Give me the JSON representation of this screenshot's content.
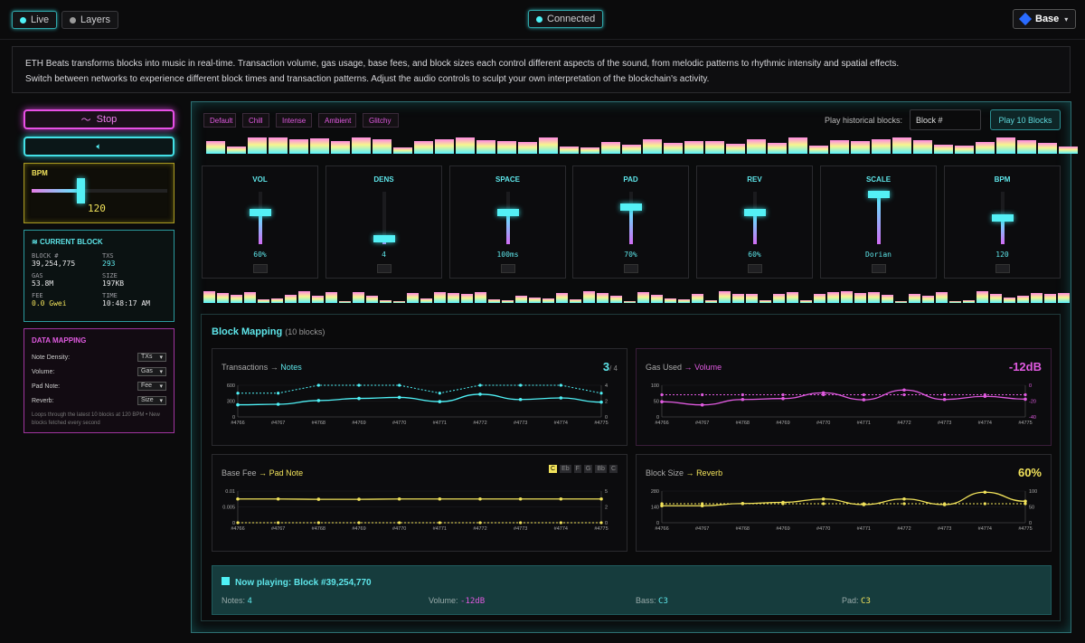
{
  "top": {
    "live": "Live",
    "layers": "Layers",
    "connected": "Connected",
    "network": "Base"
  },
  "info": {
    "line1": "ETH Beats transforms blocks into music in real-time. Transaction volume, gas usage, base fees, and block sizes each control different aspects of the sound, from melodic patterns to rhythmic intensity and spatial effects.",
    "line2": "Switch between networks to experience different block times and transaction patterns. Adjust the audio controls to sculpt your own interpretation of the blockchain's activity."
  },
  "left": {
    "stop": "Stop",
    "bpm_label": "BPM",
    "bpm_value": "120",
    "bpm_level": 0.5,
    "current_block": {
      "title": "CURRENT BLOCK",
      "block_lbl": "BLOCK #",
      "block": "39,254,775",
      "txs_lbl": "TXS",
      "txs": "293",
      "gas_lbl": "GAS",
      "gas": "53.8M",
      "size_lbl": "SIZE",
      "size": "197KB",
      "fee_lbl": "FEE",
      "fee": "0.0 Gwei",
      "time_lbl": "TIME",
      "time": "10:48:17 AM"
    },
    "mapping": {
      "title": "DATA MAPPING",
      "rows": [
        {
          "label": "Note Density:",
          "value": "TXs"
        },
        {
          "label": "Volume:",
          "value": "Gas"
        },
        {
          "label": "Pad Note:",
          "value": "Fee"
        },
        {
          "label": "Reverb:",
          "value": "Size"
        }
      ],
      "note": "Loops through the latest 10 blocks at 120 BPM • New blocks fetched every second"
    }
  },
  "presets": [
    "Default",
    "Chill",
    "Intense",
    "Ambient",
    "Glitchy"
  ],
  "history": {
    "label": "Play historical blocks:",
    "placeholder": "Block #",
    "button": "Play 10 Blocks"
  },
  "faders": [
    {
      "name": "VOL",
      "value": "60%",
      "level": 0.6
    },
    {
      "name": "DENS",
      "value": "4",
      "level": 0.1
    },
    {
      "name": "SPACE",
      "value": "100ms",
      "level": 0.6
    },
    {
      "name": "PAD",
      "value": "70%",
      "level": 0.7
    },
    {
      "name": "REV",
      "value": "60%",
      "level": 0.6
    },
    {
      "name": "SCALE",
      "value": "Dorian",
      "level": 0.95
    },
    {
      "name": "BPM",
      "value": "120",
      "level": 0.5
    }
  ],
  "block_mapping": {
    "title": "Block Mapping",
    "count": "(10 blocks)",
    "x_labels": [
      "#4766",
      "#4767",
      "#4768",
      "#4769",
      "#4770",
      "#4771",
      "#4772",
      "#4773",
      "#4774",
      "#4775"
    ],
    "tx": {
      "title": "Transactions",
      "arrow": "→",
      "target": "Notes",
      "big": "3",
      "sub": "/ 4",
      "yl": [
        "600",
        "300",
        "0"
      ],
      "yr": [
        "4",
        "2",
        "0"
      ]
    },
    "gas": {
      "title": "Gas Used",
      "arrow": "→",
      "target": "Volume",
      "big": "-12dB",
      "yl": [
        "100",
        "50",
        "0"
      ],
      "yr": [
        "0",
        "-20",
        "-40"
      ]
    },
    "fee": {
      "title": "Base Fee",
      "arrow": "→",
      "target": "Pad Note",
      "notes": [
        "C",
        "Eb",
        "F",
        "G",
        "Bb",
        "C"
      ],
      "yl": [
        "0.01",
        "0.005",
        "0"
      ],
      "yr": [
        "5",
        "2",
        "0"
      ]
    },
    "size": {
      "title": "Block Size",
      "arrow": "→",
      "target": "Reverb",
      "big": "60%",
      "yl": [
        "280",
        "140",
        "0"
      ],
      "yr": [
        "100",
        "50",
        "0"
      ]
    }
  },
  "now_playing": {
    "title": "Now playing: Block #39,254,770",
    "notes_lbl": "Notes:",
    "notes": "4",
    "vol_lbl": "Volume:",
    "vol": "-12dB",
    "bass_lbl": "Bass:",
    "bass": "C3",
    "pad_lbl": "Pad:",
    "pad": "C3"
  },
  "chart_data": [
    {
      "type": "line",
      "title": "Transactions → Notes",
      "categories": [
        "#4766",
        "#4767",
        "#4768",
        "#4769",
        "#4770",
        "#4771",
        "#4772",
        "#4773",
        "#4774",
        "#4775"
      ],
      "series": [
        {
          "name": "Transactions",
          "values": [
            230,
            240,
            310,
            350,
            370,
            290,
            430,
            330,
            360,
            280
          ]
        },
        {
          "name": "Notes",
          "values": [
            3,
            3,
            4,
            4,
            4,
            3,
            4,
            4,
            4,
            3
          ]
        }
      ]
    },
    {
      "type": "line",
      "title": "Gas Used → Volume",
      "categories": [
        "#4766",
        "#4767",
        "#4768",
        "#4769",
        "#4770",
        "#4771",
        "#4772",
        "#4773",
        "#4774",
        "#4775"
      ],
      "series": [
        {
          "name": "Gas Used",
          "values": [
            48,
            38,
            55,
            58,
            76,
            54,
            85,
            55,
            65,
            56
          ]
        },
        {
          "name": "Volume",
          "values": [
            -12,
            -12,
            -12,
            -12,
            -12,
            -12,
            -12,
            -12,
            -12,
            -12
          ]
        }
      ]
    },
    {
      "type": "line",
      "title": "Base Fee → Pad Note",
      "categories": [
        "#4766",
        "#4767",
        "#4768",
        "#4769",
        "#4770",
        "#4771",
        "#4772",
        "#4773",
        "#4774",
        "#4775"
      ],
      "series": [
        {
          "name": "Base Fee",
          "values": [
            0.0075,
            0.0075,
            0.0074,
            0.0074,
            0.0075,
            0.0075,
            0.0075,
            0.0075,
            0.0075,
            0.0075
          ]
        },
        {
          "name": "Pad Note",
          "values": [
            0,
            0,
            0,
            0,
            0,
            0,
            0,
            0,
            0,
            0
          ]
        }
      ]
    },
    {
      "type": "line",
      "title": "Block Size → Reverb",
      "categories": [
        "#4766",
        "#4767",
        "#4768",
        "#4769",
        "#4770",
        "#4771",
        "#4772",
        "#4773",
        "#4774",
        "#4775"
      ],
      "series": [
        {
          "name": "Block Size",
          "values": [
            150,
            150,
            170,
            180,
            210,
            160,
            210,
            160,
            270,
            190
          ]
        },
        {
          "name": "Reverb",
          "values": [
            60,
            60,
            60,
            60,
            60,
            60,
            60,
            60,
            60,
            60
          ]
        }
      ]
    }
  ]
}
